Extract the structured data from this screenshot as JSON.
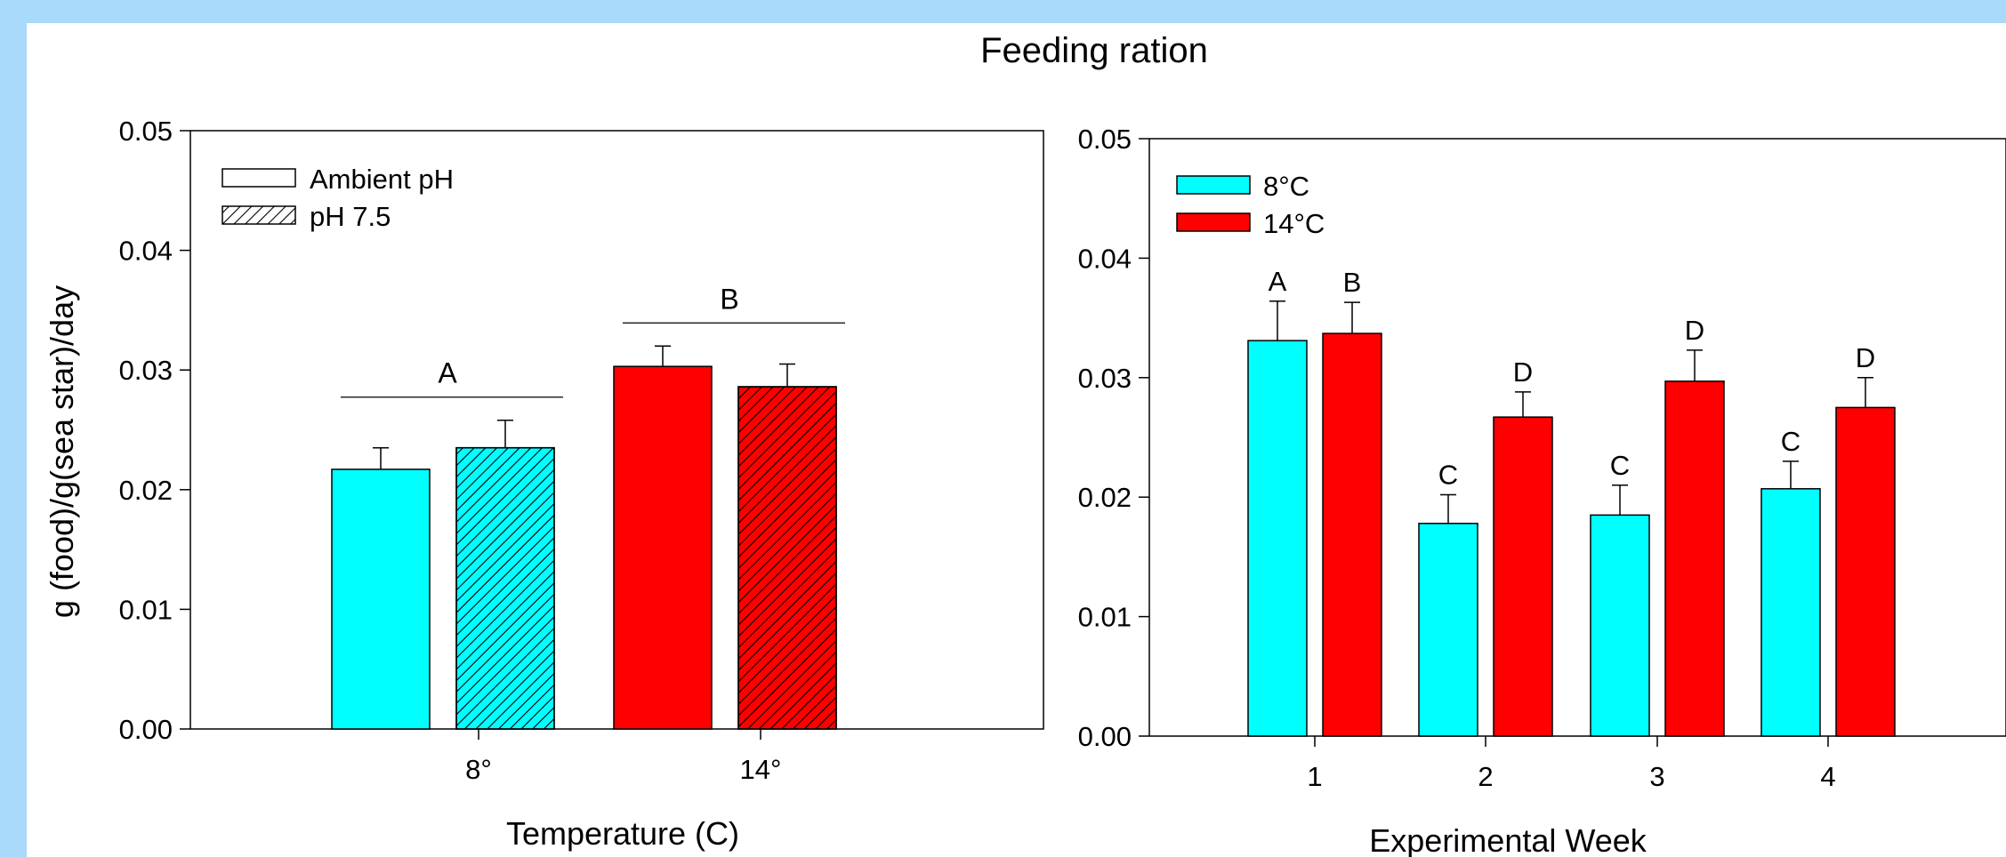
{
  "figure_title": "Feeding ration",
  "colors": {
    "background": "#a9d9fb",
    "cold": "#00ffff",
    "warm": "#ff0000",
    "hatch": "#000000"
  },
  "chart_data": [
    {
      "type": "bar",
      "title": "",
      "xlabel": "Temperature (C)",
      "ylabel": "g (food)/g(sea star)/day",
      "ylim": [
        0,
        0.05
      ],
      "yticks": [
        "0.00",
        "0.01",
        "0.02",
        "0.03",
        "0.04",
        "0.05"
      ],
      "categories": [
        "8°",
        "14°"
      ],
      "series": [
        {
          "name": "Ambient pH",
          "pattern": "solid",
          "values": [
            0.0217,
            0.0303
          ],
          "errors": [
            0.0018,
            0.0017
          ]
        },
        {
          "name": "pH 7.5",
          "pattern": "hatched",
          "values": [
            0.0235,
            0.0286
          ],
          "errors": [
            0.0023,
            0.0019
          ]
        }
      ],
      "bar_colors_by_category": [
        "#00ffff",
        "#ff0000"
      ],
      "significance": [
        {
          "label": "A",
          "category": "8°"
        },
        {
          "label": "B",
          "category": "14°"
        }
      ],
      "legend": {
        "placement": "top-left",
        "entries": [
          "Ambient pH",
          "pH 7.5"
        ]
      },
      "grid": false
    },
    {
      "type": "bar",
      "title": "",
      "xlabel": "Experimental Week",
      "ylabel": "",
      "ylim": [
        0,
        0.05
      ],
      "yticks": [
        "0.00",
        "0.01",
        "0.02",
        "0.03",
        "0.04",
        "0.05"
      ],
      "categories": [
        "1",
        "2",
        "3",
        "4"
      ],
      "series": [
        {
          "name": "8°C",
          "color": "#00ffff",
          "values": [
            0.0331,
            0.0178,
            0.0185,
            0.0207
          ],
          "errors": [
            0.0033,
            0.0024,
            0.0025,
            0.0023
          ],
          "letters": [
            "A",
            "C",
            "C",
            "C"
          ]
        },
        {
          "name": "14°C",
          "color": "#ff0000",
          "values": [
            0.0337,
            0.0267,
            0.0297,
            0.0275
          ],
          "errors": [
            0.0026,
            0.0021,
            0.0026,
            0.0025
          ],
          "letters": [
            "B",
            "D",
            "D",
            "D"
          ]
        }
      ],
      "legend": {
        "placement": "top-left",
        "entries": [
          "8°C",
          "14°C"
        ]
      },
      "grid": false
    }
  ]
}
